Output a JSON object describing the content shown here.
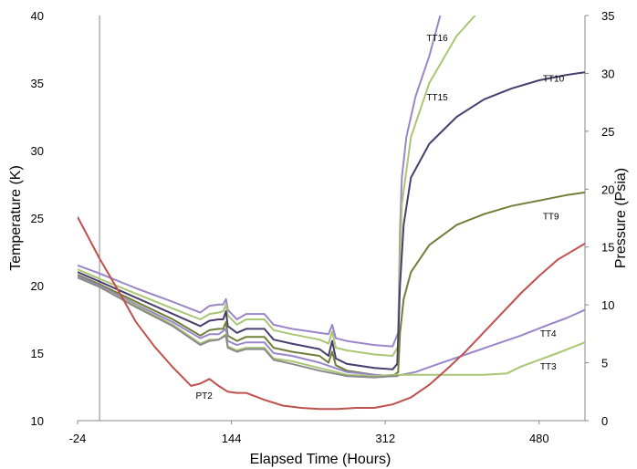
{
  "chart_data": {
    "type": "line",
    "xlabel": "Elapsed Time (Hours)",
    "ylabel": "Temperature (K)",
    "y2label": "Pressure (Psia)",
    "xlim": [
      -24,
      530
    ],
    "ylim": [
      10,
      40
    ],
    "y2lim": [
      0,
      35
    ],
    "x_ticks": [
      "-24",
      "144",
      "312",
      "480"
    ],
    "y_ticks": [
      "10",
      "15",
      "20",
      "25",
      "30",
      "35",
      "40"
    ],
    "y2_ticks": [
      "0",
      "5",
      "10",
      "15",
      "20",
      "25",
      "30",
      "35"
    ],
    "vline_x": 0,
    "grid": false,
    "series": [
      {
        "name": "TT16",
        "axis": "left",
        "color": "#9a86c8",
        "x": [
          -24,
          0,
          40,
          80,
          110,
          120,
          130,
          135,
          138,
          140,
          150,
          160,
          180,
          190,
          210,
          240,
          250,
          254,
          258,
          270,
          300,
          320,
          326,
          328,
          330,
          335,
          345,
          360,
          372
        ],
        "y": [
          21.5,
          20.9,
          19.8,
          18.8,
          18.0,
          18.5,
          18.6,
          18.6,
          19.0,
          18.2,
          17.5,
          17.9,
          17.9,
          17.1,
          16.8,
          16.5,
          16.4,
          17.1,
          16.1,
          15.9,
          15.6,
          15.5,
          16.5,
          24.0,
          28.0,
          31.0,
          34.0,
          37.0,
          40.0
        ]
      },
      {
        "name": "TT15",
        "axis": "left",
        "color": "#a9c674",
        "x": [
          -24,
          0,
          40,
          80,
          110,
          120,
          130,
          135,
          138,
          140,
          150,
          160,
          180,
          190,
          210,
          240,
          250,
          254,
          258,
          270,
          300,
          320,
          326,
          328,
          330,
          340,
          360,
          390,
          410
        ],
        "y": [
          21.2,
          20.5,
          19.4,
          18.3,
          17.5,
          17.9,
          18.0,
          18.1,
          18.6,
          17.8,
          17.1,
          17.5,
          17.5,
          16.7,
          16.4,
          16.0,
          15.7,
          16.6,
          15.4,
          15.2,
          14.9,
          14.8,
          15.5,
          22.0,
          26.0,
          31.0,
          35.0,
          38.5,
          40.0
        ]
      },
      {
        "name": "TT10",
        "axis": "left",
        "color": "#4b3d6e",
        "x": [
          -24,
          0,
          40,
          80,
          110,
          120,
          130,
          135,
          138,
          140,
          150,
          160,
          180,
          190,
          210,
          240,
          250,
          254,
          258,
          270,
          300,
          320,
          325,
          328,
          332,
          340,
          360,
          390,
          420,
          450,
          480,
          510,
          530
        ],
        "y": [
          21.0,
          20.3,
          19.1,
          17.9,
          17.0,
          17.4,
          17.5,
          17.5,
          18.1,
          17.0,
          16.5,
          16.8,
          16.8,
          16.0,
          15.7,
          15.3,
          14.8,
          15.9,
          14.6,
          14.2,
          13.9,
          13.8,
          14.2,
          20.0,
          24.5,
          28.0,
          30.5,
          32.5,
          33.8,
          34.6,
          35.2,
          35.6,
          35.8
        ]
      },
      {
        "name": "TT9",
        "axis": "left",
        "color": "#6f7f3a",
        "x": [
          -24,
          0,
          40,
          80,
          110,
          120,
          130,
          135,
          138,
          140,
          150,
          160,
          180,
          190,
          210,
          240,
          250,
          254,
          258,
          270,
          300,
          320,
          326,
          328,
          332,
          340,
          360,
          390,
          420,
          450,
          480,
          510,
          530
        ],
        "y": [
          20.8,
          20.1,
          18.8,
          17.5,
          16.3,
          16.7,
          16.8,
          16.8,
          17.3,
          16.3,
          15.9,
          16.2,
          16.2,
          15.4,
          15.1,
          14.8,
          14.3,
          15.1,
          14.1,
          13.7,
          13.4,
          13.3,
          13.6,
          16.5,
          19.0,
          21.0,
          23.0,
          24.5,
          25.3,
          25.9,
          26.3,
          26.7,
          26.9
        ]
      },
      {
        "name": "TT4",
        "axis": "left",
        "color": "#9a86c8",
        "x": [
          -24,
          0,
          40,
          80,
          110,
          120,
          130,
          138,
          140,
          150,
          160,
          180,
          190,
          210,
          240,
          270,
          300,
          320,
          330,
          345,
          370,
          400,
          430,
          460,
          490,
          510,
          530
        ],
        "y": [
          20.7,
          20.0,
          18.6,
          17.3,
          16.1,
          16.4,
          16.4,
          16.8,
          15.9,
          15.6,
          15.8,
          15.8,
          15.0,
          14.8,
          14.3,
          13.6,
          13.4,
          13.3,
          13.4,
          13.6,
          14.2,
          14.9,
          15.6,
          16.3,
          17.1,
          17.6,
          18.2
        ]
      },
      {
        "name": "TT3",
        "axis": "left",
        "color": "#a9c674",
        "x": [
          -24,
          0,
          40,
          80,
          110,
          120,
          130,
          138,
          140,
          150,
          160,
          180,
          190,
          210,
          240,
          270,
          300,
          320,
          340,
          380,
          420,
          445,
          460,
          480,
          500,
          515,
          530
        ],
        "y": [
          20.6,
          19.9,
          18.5,
          17.1,
          15.7,
          16.0,
          16.0,
          16.4,
          15.5,
          15.2,
          15.4,
          15.4,
          14.6,
          14.4,
          13.9,
          13.4,
          13.3,
          13.4,
          13.4,
          13.4,
          13.4,
          13.5,
          14.0,
          14.5,
          15.0,
          15.4,
          15.8
        ]
      },
      {
        "name": "",
        "axis": "left",
        "color": "#8a8a8a",
        "x": [
          -24,
          0,
          40,
          80,
          110,
          120,
          130,
          138,
          140,
          150,
          160,
          180,
          190,
          210,
          240,
          270,
          300,
          320,
          326
        ],
        "y": [
          20.6,
          19.9,
          18.4,
          17.0,
          15.6,
          15.9,
          16.0,
          16.3,
          15.4,
          15.1,
          15.3,
          15.3,
          14.5,
          14.2,
          13.7,
          13.3,
          13.2,
          13.3,
          13.3
        ]
      },
      {
        "name": "PT2",
        "axis": "right",
        "color": "#c0504d",
        "x": [
          -24,
          -10,
          0,
          20,
          40,
          60,
          80,
          100,
          110,
          120,
          130,
          140,
          150,
          160,
          180,
          200,
          220,
          240,
          260,
          280,
          300,
          320,
          340,
          360,
          380,
          400,
          430,
          460,
          480,
          500,
          530
        ],
        "y": [
          17.6,
          15.5,
          14.0,
          11.3,
          8.5,
          6.4,
          4.6,
          3.0,
          3.2,
          3.6,
          3.0,
          2.5,
          2.4,
          2.4,
          1.8,
          1.3,
          1.1,
          1.0,
          1.0,
          1.1,
          1.1,
          1.4,
          2.0,
          3.1,
          4.5,
          6.0,
          8.5,
          11.0,
          12.5,
          13.9,
          15.3
        ]
      }
    ],
    "annotations": [
      {
        "text": "TT16",
        "x": 357,
        "y": 38.1,
        "axis": "left"
      },
      {
        "text": "TT15",
        "x": 357,
        "y": 33.7,
        "axis": "left"
      },
      {
        "text": "TT10",
        "x": 484,
        "y": 35.1,
        "axis": "left"
      },
      {
        "text": "TT9",
        "x": 484,
        "y": 24.9,
        "axis": "left"
      },
      {
        "text": "TT4",
        "x": 481,
        "y": 16.2,
        "axis": "left"
      },
      {
        "text": "TT3",
        "x": 481,
        "y": 13.8,
        "axis": "left"
      },
      {
        "text": "PT2",
        "x": 105,
        "y": 1.9,
        "axis": "right"
      }
    ]
  },
  "colors": {
    "axis": "#888888",
    "text": "#000000"
  }
}
